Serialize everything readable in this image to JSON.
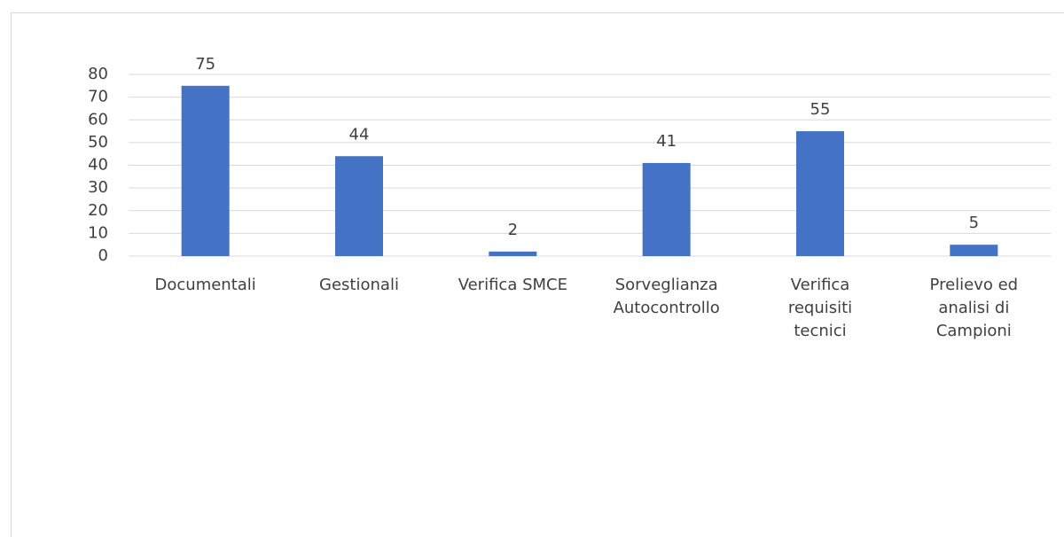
{
  "chart_data": {
    "type": "bar",
    "categories": [
      "Documentali",
      "Gestionali",
      "Verifica SMCE",
      "Sorveglianza\nAutocontrollo",
      "Verifica\nrequisiti\ntecnici",
      "Prelievo ed\nanalisi di\nCampioni"
    ],
    "values": [
      75,
      44,
      2,
      41,
      55,
      5
    ],
    "color": "#4472c4",
    "ylim": [
      0,
      80
    ],
    "yticks": [
      0,
      10,
      20,
      30,
      40,
      50,
      60,
      70,
      80
    ],
    "grid": true
  }
}
